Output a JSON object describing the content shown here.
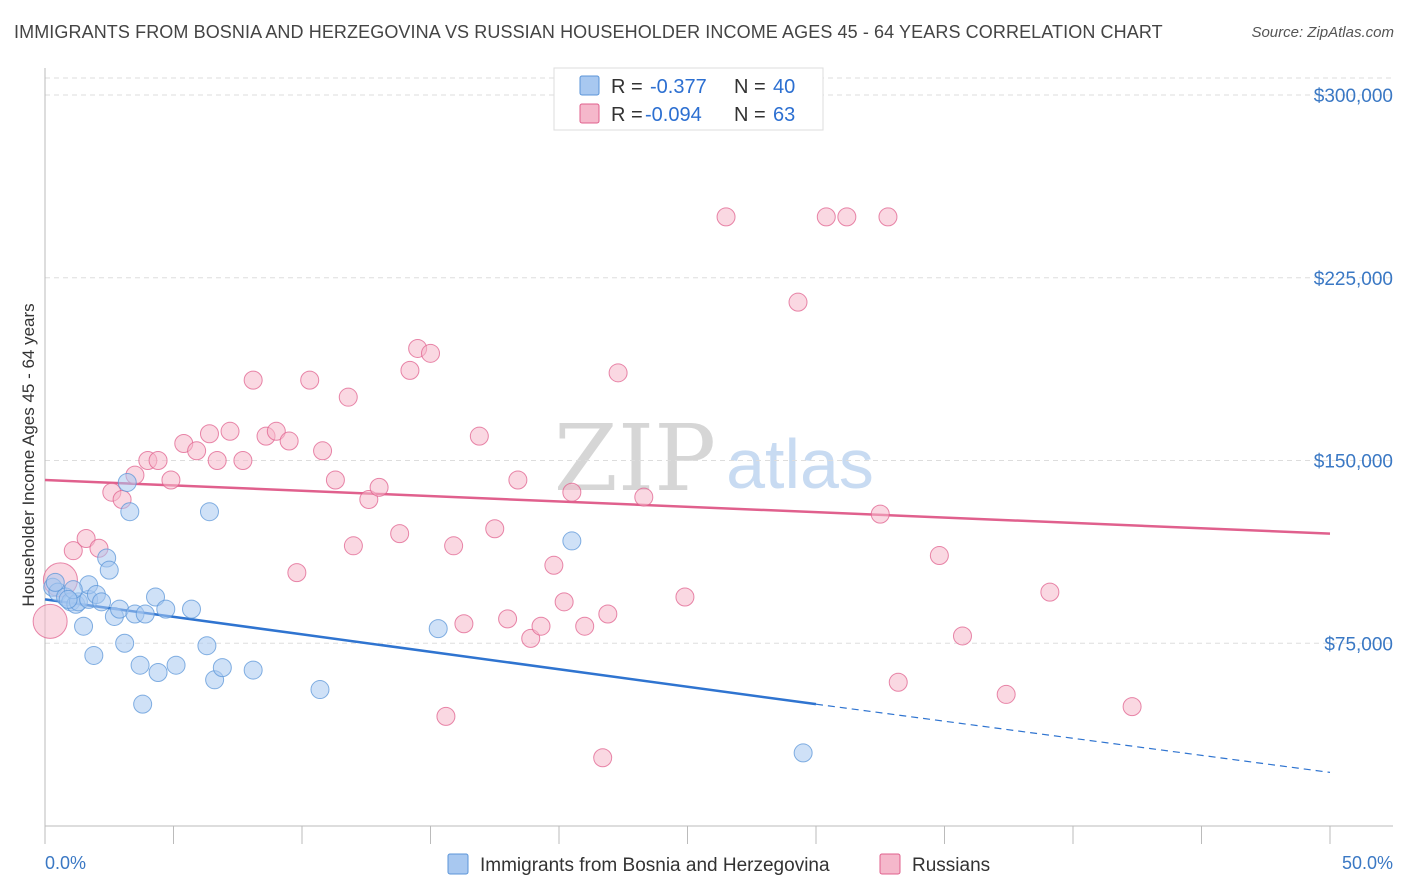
{
  "header": {
    "title": "IMMIGRANTS FROM BOSNIA AND HERZEGOVINA VS RUSSIAN HOUSEHOLDER INCOME AGES 45 - 64 YEARS CORRELATION CHART",
    "source": "Source: ZipAtlas.com"
  },
  "watermark": {
    "zip": "ZIP",
    "atlas": "atlas"
  },
  "legend": {
    "r_label": "R =",
    "n_label": "N =",
    "rows": [
      {
        "r": "-0.377",
        "n": "40",
        "color": "#a8c8f0"
      },
      {
        "r": "-0.094",
        "n": "63",
        "color": "#f5b8cb"
      }
    ]
  },
  "chart_data": {
    "type": "scatter",
    "ylabel": "Householder Income Ages 45 - 64 years",
    "xlim": [
      0,
      50
    ],
    "ylim": [
      0,
      307000
    ],
    "x_tick_labels": [
      "0.0%",
      "50.0%"
    ],
    "y_ticks": [
      {
        "value": 75000,
        "label": "$75,000"
      },
      {
        "value": 150000,
        "label": "$150,000"
      },
      {
        "value": 225000,
        "label": "$225,000"
      },
      {
        "value": 300000,
        "label": "$300,000"
      }
    ],
    "grid": "horizontal dashed",
    "series": [
      {
        "name": "Immigrants from Bosnia and Herzegovina",
        "color": "#5b95d8",
        "fill": "#a8c8f0",
        "trend": {
          "x": [
            0,
            30,
            50
          ],
          "y": [
            93000,
            50000,
            22000
          ],
          "solid_until": 30
        },
        "points": [
          {
            "x": 0.3,
            "y": 98000
          },
          {
            "x": 0.5,
            "y": 96000
          },
          {
            "x": 0.8,
            "y": 94000
          },
          {
            "x": 1.0,
            "y": 92000
          },
          {
            "x": 1.2,
            "y": 91000
          },
          {
            "x": 1.3,
            "y": 92000
          },
          {
            "x": 1.5,
            "y": 82000
          },
          {
            "x": 1.7,
            "y": 93000
          },
          {
            "x": 1.7,
            "y": 99000
          },
          {
            "x": 1.9,
            "y": 70000
          },
          {
            "x": 2.0,
            "y": 95000
          },
          {
            "x": 2.2,
            "y": 92000
          },
          {
            "x": 2.4,
            "y": 110000
          },
          {
            "x": 2.5,
            "y": 105000
          },
          {
            "x": 2.7,
            "y": 86000
          },
          {
            "x": 2.9,
            "y": 89000
          },
          {
            "x": 3.1,
            "y": 75000
          },
          {
            "x": 3.2,
            "y": 141000
          },
          {
            "x": 3.3,
            "y": 129000
          },
          {
            "x": 3.5,
            "y": 87000
          },
          {
            "x": 3.7,
            "y": 66000
          },
          {
            "x": 3.8,
            "y": 50000
          },
          {
            "x": 3.9,
            "y": 87000
          },
          {
            "x": 4.3,
            "y": 94000
          },
          {
            "x": 4.4,
            "y": 63000
          },
          {
            "x": 4.7,
            "y": 89000
          },
          {
            "x": 5.1,
            "y": 66000
          },
          {
            "x": 5.7,
            "y": 89000
          },
          {
            "x": 6.3,
            "y": 74000
          },
          {
            "x": 6.4,
            "y": 129000
          },
          {
            "x": 6.6,
            "y": 60000
          },
          {
            "x": 6.9,
            "y": 65000
          },
          {
            "x": 8.1,
            "y": 64000
          },
          {
            "x": 10.7,
            "y": 56000
          },
          {
            "x": 15.3,
            "y": 81000
          },
          {
            "x": 20.5,
            "y": 117000
          },
          {
            "x": 29.5,
            "y": 30000
          },
          {
            "x": 0.4,
            "y": 100000
          },
          {
            "x": 1.1,
            "y": 97000
          },
          {
            "x": 0.9,
            "y": 93000
          }
        ]
      },
      {
        "name": "Russians",
        "color": "#e0608d",
        "fill": "#f5b8cb",
        "trend": {
          "x": [
            0,
            50
          ],
          "y": [
            142000,
            120000
          ]
        },
        "points": [
          {
            "x": 0.2,
            "y": 84000,
            "big": true
          },
          {
            "x": 0.6,
            "y": 101000,
            "big": true
          },
          {
            "x": 1.1,
            "y": 113000
          },
          {
            "x": 1.6,
            "y": 118000
          },
          {
            "x": 2.1,
            "y": 114000
          },
          {
            "x": 2.6,
            "y": 137000
          },
          {
            "x": 3.0,
            "y": 134000
          },
          {
            "x": 3.5,
            "y": 144000
          },
          {
            "x": 4.0,
            "y": 150000
          },
          {
            "x": 4.4,
            "y": 150000
          },
          {
            "x": 4.9,
            "y": 142000
          },
          {
            "x": 5.4,
            "y": 157000
          },
          {
            "x": 5.9,
            "y": 154000
          },
          {
            "x": 6.4,
            "y": 161000
          },
          {
            "x": 6.7,
            "y": 150000
          },
          {
            "x": 7.2,
            "y": 162000
          },
          {
            "x": 7.7,
            "y": 150000
          },
          {
            "x": 8.1,
            "y": 183000
          },
          {
            "x": 8.6,
            "y": 160000
          },
          {
            "x": 9.0,
            "y": 162000
          },
          {
            "x": 9.5,
            "y": 158000
          },
          {
            "x": 9.8,
            "y": 104000
          },
          {
            "x": 10.3,
            "y": 183000
          },
          {
            "x": 10.8,
            "y": 154000
          },
          {
            "x": 11.3,
            "y": 142000
          },
          {
            "x": 11.8,
            "y": 176000
          },
          {
            "x": 12.0,
            "y": 115000
          },
          {
            "x": 12.6,
            "y": 134000
          },
          {
            "x": 13.0,
            "y": 139000
          },
          {
            "x": 13.8,
            "y": 120000
          },
          {
            "x": 14.2,
            "y": 187000
          },
          {
            "x": 14.5,
            "y": 196000
          },
          {
            "x": 15.0,
            "y": 194000
          },
          {
            "x": 15.6,
            "y": 45000
          },
          {
            "x": 15.9,
            "y": 115000
          },
          {
            "x": 16.3,
            "y": 83000
          },
          {
            "x": 16.9,
            "y": 160000
          },
          {
            "x": 17.5,
            "y": 122000
          },
          {
            "x": 18.0,
            "y": 85000
          },
          {
            "x": 18.4,
            "y": 142000
          },
          {
            "x": 18.9,
            "y": 77000
          },
          {
            "x": 19.3,
            "y": 82000
          },
          {
            "x": 19.8,
            "y": 107000
          },
          {
            "x": 20.2,
            "y": 92000
          },
          {
            "x": 20.5,
            "y": 137000
          },
          {
            "x": 21.0,
            "y": 82000
          },
          {
            "x": 21.7,
            "y": 28000
          },
          {
            "x": 21.9,
            "y": 87000
          },
          {
            "x": 22.3,
            "y": 186000
          },
          {
            "x": 23.3,
            "y": 135000
          },
          {
            "x": 24.9,
            "y": 94000
          },
          {
            "x": 26.5,
            "y": 250000
          },
          {
            "x": 29.3,
            "y": 215000
          },
          {
            "x": 30.4,
            "y": 250000
          },
          {
            "x": 31.2,
            "y": 250000
          },
          {
            "x": 32.5,
            "y": 128000
          },
          {
            "x": 32.8,
            "y": 250000
          },
          {
            "x": 33.2,
            "y": 59000
          },
          {
            "x": 34.8,
            "y": 111000
          },
          {
            "x": 35.7,
            "y": 78000
          },
          {
            "x": 37.4,
            "y": 54000
          },
          {
            "x": 39.1,
            "y": 96000
          },
          {
            "x": 42.3,
            "y": 49000
          }
        ]
      }
    ]
  }
}
